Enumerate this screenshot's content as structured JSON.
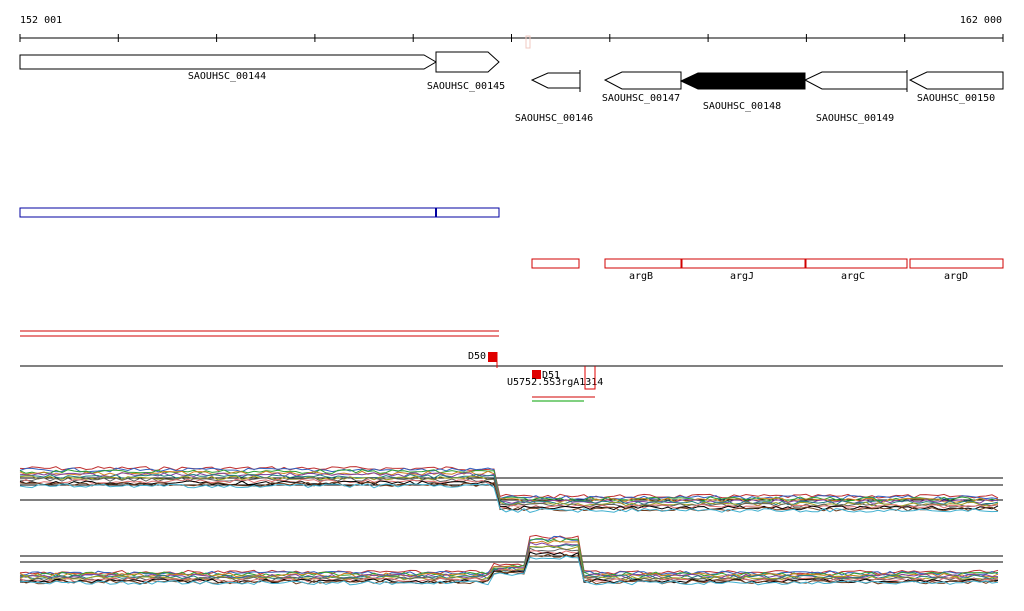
{
  "axis": {
    "start_label": "152 001",
    "end_label": "162 000"
  },
  "genes": [
    {
      "label": "SAOUHSC_00144"
    },
    {
      "label": "SAOUHSC_00145"
    },
    {
      "label": "SAOUHSC_00146"
    },
    {
      "label": "SAOUHSC_00147"
    },
    {
      "label": "SAOUHSC_00148"
    },
    {
      "label": "SAOUHSC_00149"
    },
    {
      "label": "SAOUHSC_00150"
    }
  ],
  "annotations": [
    {
      "label": "argB"
    },
    {
      "label": "argJ"
    },
    {
      "label": "argC"
    },
    {
      "label": "argD"
    }
  ],
  "features": [
    {
      "label": "D50"
    },
    {
      "label": "D51"
    },
    {
      "label": "U5752.5S3rgA1314"
    }
  ]
}
